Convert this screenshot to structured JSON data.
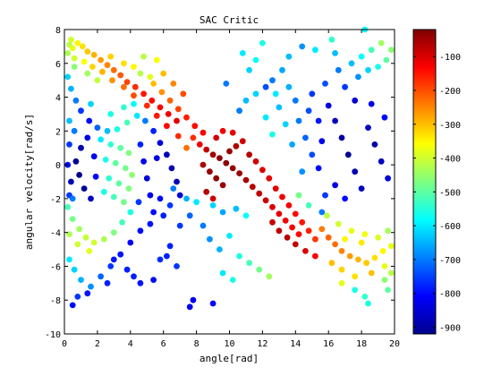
{
  "chart_data": {
    "type": "scatter",
    "title": "SAC Critic",
    "xlabel": "angle[rad]",
    "ylabel": "angular velocity[rad/s]",
    "xlim": [
      0,
      20
    ],
    "ylim": [
      -10,
      8
    ],
    "xticks": [
      "0",
      "2",
      "4",
      "6",
      "8",
      "10",
      "12",
      "14",
      "16",
      "18",
      "20"
    ],
    "yticks": [
      "-10",
      "-8",
      "-6",
      "-4",
      "-2",
      "0",
      "2",
      "4",
      "6",
      "8"
    ],
    "colorbar": {
      "range": [
        -920,
        -20
      ],
      "colormap": "jet",
      "ticks": [
        "-100",
        "-200",
        "-300",
        "-400",
        "-500",
        "-600",
        "-700",
        "-800",
        "-900"
      ]
    },
    "grid": false,
    "legend": "none",
    "points": [
      [
        0.3,
        7.1,
        -420
      ],
      [
        0.5,
        6.9,
        -380
      ],
      [
        0.8,
        7.2,
        -350
      ],
      [
        1.1,
        7.0,
        -330
      ],
      [
        1.4,
        6.7,
        -310
      ],
      [
        1.8,
        6.5,
        -290
      ],
      [
        2.2,
        6.2,
        -270
      ],
      [
        2.6,
        5.9,
        -250
      ],
      [
        3.0,
        5.6,
        -230
      ],
      [
        3.4,
        5.3,
        -210
      ],
      [
        3.8,
        4.9,
        -190
      ],
      [
        4.3,
        4.6,
        -170
      ],
      [
        4.8,
        4.2,
        -150
      ],
      [
        5.3,
        3.8,
        -140
      ],
      [
        5.8,
        3.4,
        -130
      ],
      [
        6.3,
        3.0,
        -120
      ],
      [
        6.8,
        2.6,
        -110
      ],
      [
        0.6,
        6.3,
        -400
      ],
      [
        1.2,
        6.1,
        -360
      ],
      [
        1.7,
        5.8,
        -320
      ],
      [
        2.3,
        5.5,
        -290
      ],
      [
        2.9,
        5.0,
        -260
      ],
      [
        3.6,
        4.6,
        -230
      ],
      [
        4.2,
        4.1,
        -200
      ],
      [
        5.0,
        3.5,
        -170
      ],
      [
        5.6,
        2.9,
        -150
      ],
      [
        6.2,
        2.3,
        -140
      ],
      [
        6.9,
        1.7,
        -170
      ],
      [
        7.4,
        1.0,
        -230
      ],
      [
        0.2,
        5.2,
        -620
      ],
      [
        0.4,
        4.5,
        -650
      ],
      [
        0.7,
        3.8,
        -700
      ],
      [
        1.0,
        3.2,
        -760
      ],
      [
        1.5,
        2.6,
        -800
      ],
      [
        2.0,
        2.2,
        -720
      ],
      [
        2.6,
        2.0,
        -640
      ],
      [
        3.2,
        2.1,
        -560
      ],
      [
        3.8,
        2.5,
        -520
      ],
      [
        4.4,
        2.9,
        -600
      ],
      [
        4.9,
        2.6,
        -700
      ],
      [
        5.4,
        2.0,
        -780
      ],
      [
        5.8,
        1.3,
        -840
      ],
      [
        6.2,
        0.6,
        -870
      ],
      [
        6.5,
        -0.2,
        -880
      ],
      [
        6.8,
        -1.0,
        -870
      ],
      [
        7.0,
        -1.8,
        -850
      ],
      [
        2.2,
        1.5,
        -600
      ],
      [
        2.8,
        1.2,
        -540
      ],
      [
        3.4,
        1.0,
        -500
      ],
      [
        3.9,
        0.7,
        -470
      ],
      [
        2.5,
        0.3,
        -560
      ],
      [
        3.1,
        0.1,
        -500
      ],
      [
        3.7,
        -0.2,
        -480
      ],
      [
        4.1,
        -0.6,
        -460
      ],
      [
        2.7,
        -0.8,
        -540
      ],
      [
        3.3,
        -1.1,
        -500
      ],
      [
        3.9,
        -1.4,
        -470
      ],
      [
        2.4,
        -1.6,
        -560
      ],
      [
        3.0,
        -1.9,
        -520
      ],
      [
        3.6,
        -2.2,
        -480
      ],
      [
        1.0,
        1.0,
        -880
      ],
      [
        0.7,
        0.2,
        -900
      ],
      [
        0.9,
        -0.6,
        -910
      ],
      [
        1.2,
        -1.4,
        -900
      ],
      [
        1.6,
        -2.0,
        -860
      ],
      [
        0.4,
        -1.0,
        -870
      ],
      [
        1.8,
        0.5,
        -820
      ],
      [
        1.9,
        -0.7,
        -800
      ],
      [
        1.4,
        1.6,
        -830
      ],
      [
        4.6,
        1.2,
        -780
      ],
      [
        4.8,
        0.2,
        -820
      ],
      [
        5.0,
        -0.8,
        -840
      ],
      [
        5.2,
        -1.8,
        -820
      ],
      [
        5.4,
        -2.8,
        -800
      ],
      [
        4.5,
        -2.2,
        -760
      ],
      [
        5.8,
        -2.0,
        -800
      ],
      [
        6.0,
        -3.0,
        -780
      ],
      [
        6.4,
        -2.4,
        -760
      ],
      [
        5.6,
        0.4,
        -830
      ],
      [
        0.2,
        -2.5,
        -520
      ],
      [
        0.5,
        -3.2,
        -480
      ],
      [
        0.9,
        -3.8,
        -440
      ],
      [
        1.3,
        -4.3,
        -410
      ],
      [
        1.8,
        -4.6,
        -400
      ],
      [
        2.4,
        -4.4,
        -430
      ],
      [
        3.0,
        -4.0,
        -470
      ],
      [
        3.5,
        -3.4,
        -520
      ],
      [
        4.0,
        -2.8,
        -560
      ],
      [
        0.3,
        -4.1,
        -430
      ],
      [
        0.8,
        -4.7,
        -400
      ],
      [
        1.5,
        -5.1,
        -380
      ],
      [
        0.3,
        -5.6,
        -600
      ],
      [
        0.6,
        -6.2,
        -620
      ],
      [
        1.0,
        -6.8,
        -650
      ],
      [
        1.6,
        -7.2,
        -680
      ],
      [
        2.2,
        -6.6,
        -720
      ],
      [
        2.8,
        -6.0,
        -760
      ],
      [
        3.4,
        -5.3,
        -790
      ],
      [
        4.0,
        -4.6,
        -810
      ],
      [
        4.6,
        -3.9,
        -800
      ],
      [
        5.2,
        -3.5,
        -790
      ],
      [
        0.8,
        -7.8,
        -760
      ],
      [
        1.4,
        -7.6,
        -790
      ],
      [
        0.5,
        -8.3,
        -800
      ],
      [
        2.6,
        -7.0,
        -780
      ],
      [
        7.8,
        1.6,
        -170
      ],
      [
        8.2,
        1.2,
        -120
      ],
      [
        8.6,
        0.9,
        -80
      ],
      [
        9.0,
        0.6,
        -50
      ],
      [
        9.4,
        0.4,
        -35
      ],
      [
        9.8,
        0.1,
        -30
      ],
      [
        10.2,
        -0.2,
        -35
      ],
      [
        10.6,
        -0.5,
        -45
      ],
      [
        11.0,
        -0.9,
        -60
      ],
      [
        11.4,
        -1.3,
        -70
      ],
      [
        11.8,
        -1.7,
        -80
      ],
      [
        12.2,
        -2.1,
        -90
      ],
      [
        12.6,
        -2.5,
        -100
      ],
      [
        13.0,
        -2.9,
        -110
      ],
      [
        13.4,
        -3.3,
        -120
      ],
      [
        13.8,
        -3.7,
        -130
      ],
      [
        14.2,
        -4.1,
        -140
      ],
      [
        8.4,
        0.0,
        -60
      ],
      [
        8.8,
        -0.4,
        -40
      ],
      [
        9.2,
        -0.8,
        -35
      ],
      [
        9.6,
        -1.2,
        -40
      ],
      [
        10.0,
        0.8,
        -40
      ],
      [
        10.4,
        1.1,
        -60
      ],
      [
        10.8,
        1.4,
        -90
      ],
      [
        9.2,
        1.6,
        -90
      ],
      [
        9.6,
        2.0,
        -120
      ],
      [
        10.2,
        1.9,
        -110
      ],
      [
        8.6,
        -1.6,
        -70
      ],
      [
        9.0,
        -2.0,
        -90
      ],
      [
        11.2,
        0.6,
        -70
      ],
      [
        11.6,
        0.2,
        -90
      ],
      [
        12.0,
        -0.3,
        -100
      ],
      [
        12.4,
        -0.8,
        -110
      ],
      [
        12.8,
        -1.4,
        -110
      ],
      [
        13.2,
        -1.9,
        -120
      ],
      [
        13.6,
        -2.4,
        -130
      ],
      [
        14.0,
        -2.9,
        -140
      ],
      [
        14.4,
        -3.4,
        -150
      ],
      [
        14.8,
        -3.9,
        -160
      ],
      [
        15.2,
        -4.4,
        -180
      ],
      [
        12.6,
        -3.4,
        -80
      ],
      [
        13.0,
        -3.9,
        -75
      ],
      [
        13.5,
        -4.3,
        -70
      ],
      [
        14.0,
        -4.7,
        -80
      ],
      [
        14.6,
        -5.1,
        -100
      ],
      [
        15.2,
        -5.4,
        -130
      ],
      [
        15.6,
        -3.8,
        -240
      ],
      [
        16.0,
        -4.3,
        -220
      ],
      [
        16.4,
        -4.7,
        -230
      ],
      [
        16.8,
        -5.1,
        -250
      ],
      [
        17.3,
        -5.4,
        -270
      ],
      [
        17.8,
        -5.6,
        -290
      ],
      [
        18.3,
        -5.8,
        -310
      ],
      [
        18.8,
        -5.5,
        -330
      ],
      [
        19.3,
        -5.1,
        -350
      ],
      [
        19.8,
        -4.8,
        -380
      ],
      [
        16.2,
        -5.8,
        -300
      ],
      [
        16.8,
        -6.2,
        -320
      ],
      [
        17.6,
        -6.6,
        -330
      ],
      [
        18.6,
        -6.4,
        -300
      ],
      [
        19.4,
        -6.0,
        -380
      ],
      [
        15.9,
        -3.0,
        -420
      ],
      [
        16.6,
        -3.5,
        -400
      ],
      [
        17.4,
        -3.9,
        -380
      ],
      [
        18.2,
        -4.1,
        -370
      ],
      [
        19.0,
        -4.3,
        -390
      ],
      [
        19.6,
        -3.9,
        -440
      ],
      [
        17.0,
        -4.4,
        -350
      ],
      [
        18.0,
        -4.6,
        -340
      ],
      [
        5.4,
        4.8,
        -300
      ],
      [
        5.9,
        4.3,
        -260
      ],
      [
        6.4,
        3.8,
        -220
      ],
      [
        6.9,
        3.3,
        -190
      ],
      [
        7.4,
        2.8,
        -160
      ],
      [
        7.9,
        2.3,
        -140
      ],
      [
        8.4,
        1.9,
        -130
      ],
      [
        5.2,
        5.2,
        -380
      ],
      [
        4.6,
        5.4,
        -420
      ],
      [
        16.0,
        3.5,
        -840
      ],
      [
        16.4,
        2.6,
        -870
      ],
      [
        16.8,
        1.6,
        -890
      ],
      [
        17.2,
        0.6,
        -900
      ],
      [
        17.6,
        -0.4,
        -880
      ],
      [
        18.0,
        -1.4,
        -860
      ],
      [
        18.4,
        2.2,
        -860
      ],
      [
        18.8,
        1.2,
        -880
      ],
      [
        19.2,
        0.2,
        -860
      ],
      [
        19.6,
        -0.8,
        -840
      ],
      [
        16.4,
        -1.2,
        -830
      ],
      [
        17.0,
        -2.0,
        -800
      ],
      [
        15.6,
        1.4,
        -820
      ],
      [
        15.4,
        -0.2,
        -800
      ],
      [
        18.6,
        3.6,
        -820
      ],
      [
        19.4,
        2.8,
        -800
      ],
      [
        17.6,
        3.8,
        -850
      ],
      [
        14.2,
        2.6,
        -700
      ],
      [
        14.6,
        1.6,
        -720
      ],
      [
        15.0,
        0.6,
        -740
      ],
      [
        14.4,
        -0.4,
        -680
      ],
      [
        13.8,
        1.2,
        -660
      ],
      [
        13.4,
        2.4,
        -620
      ],
      [
        12.6,
        1.8,
        -560
      ],
      [
        12.2,
        2.8,
        -600
      ],
      [
        13.0,
        3.4,
        -640
      ],
      [
        14.0,
        3.8,
        -700
      ],
      [
        15.0,
        4.2,
        -760
      ],
      [
        15.8,
        4.8,
        -740
      ],
      [
        17.0,
        4.6,
        -760
      ],
      [
        17.8,
        5.2,
        -680
      ],
      [
        18.4,
        5.6,
        -620
      ],
      [
        19.0,
        5.8,
        -560
      ],
      [
        19.5,
        6.2,
        -500
      ],
      [
        19.8,
        6.8,
        -460
      ],
      [
        19.2,
        7.2,
        -440
      ],
      [
        18.6,
        6.8,
        -520
      ],
      [
        18.0,
        6.4,
        -580
      ],
      [
        17.4,
        6.0,
        -640
      ],
      [
        16.6,
        5.6,
        -700
      ],
      [
        18.2,
        8.0,
        -580
      ],
      [
        16.4,
        6.6,
        -640
      ],
      [
        12.2,
        4.6,
        -740
      ],
      [
        12.6,
        5.0,
        -700
      ],
      [
        13.2,
        5.6,
        -660
      ],
      [
        11.6,
        4.2,
        -620
      ],
      [
        11.0,
        3.8,
        -640
      ],
      [
        10.6,
        3.2,
        -700
      ],
      [
        9.8,
        4.8,
        -700
      ],
      [
        11.2,
        5.6,
        -620
      ],
      [
        14.4,
        7.0,
        -680
      ],
      [
        15.2,
        6.8,
        -600
      ],
      [
        16.2,
        7.4,
        -540
      ],
      [
        13.6,
        6.4,
        -640
      ],
      [
        8.4,
        -3.6,
        -700
      ],
      [
        8.8,
        -4.4,
        -680
      ],
      [
        9.4,
        -5.0,
        -650
      ],
      [
        10.0,
        -4.2,
        -600
      ],
      [
        10.6,
        -5.4,
        -560
      ],
      [
        11.2,
        -5.8,
        -520
      ],
      [
        11.8,
        -6.2,
        -480
      ],
      [
        12.4,
        -6.6,
        -440
      ],
      [
        7.6,
        -3.0,
        -720
      ],
      [
        7.0,
        -3.6,
        -760
      ],
      [
        6.4,
        -4.8,
        -780
      ],
      [
        5.8,
        -5.6,
        -770
      ],
      [
        9.6,
        -6.4,
        -600
      ],
      [
        10.2,
        -6.8,
        -560
      ],
      [
        9.0,
        -2.4,
        -620
      ],
      [
        9.6,
        -2.8,
        -660
      ],
      [
        10.4,
        -2.6,
        -640
      ],
      [
        8.0,
        -2.2,
        -600
      ],
      [
        7.4,
        -2.0,
        -650
      ],
      [
        6.6,
        -1.4,
        -700
      ],
      [
        11.0,
        -3.0,
        -580
      ],
      [
        7.6,
        -8.4,
        -820
      ],
      [
        7.8,
        -8.0,
        -830
      ],
      [
        9.0,
        -8.2,
        -800
      ],
      [
        4.6,
        -7.0,
        -790
      ],
      [
        5.4,
        -6.8,
        -800
      ],
      [
        3.8,
        -6.2,
        -780
      ],
      [
        4.2,
        -6.6,
        -780
      ],
      [
        3.0,
        -5.6,
        -790
      ],
      [
        6.2,
        -5.4,
        -780
      ],
      [
        6.8,
        -6.0,
        -760
      ],
      [
        4.2,
        5.8,
        -350
      ],
      [
        3.6,
        6.0,
        -330
      ],
      [
        2.8,
        6.4,
        -320
      ],
      [
        4.8,
        6.4,
        -420
      ],
      [
        5.6,
        6.2,
        -360
      ],
      [
        6.0,
        5.4,
        -300
      ],
      [
        6.6,
        4.8,
        -250
      ],
      [
        7.2,
        4.2,
        -200
      ],
      [
        2.0,
        5.0,
        -410
      ],
      [
        1.4,
        5.4,
        -440
      ],
      [
        0.6,
        5.8,
        -460
      ],
      [
        0.2,
        6.6,
        -430
      ],
      [
        0.4,
        7.4,
        -400
      ],
      [
        0.3,
        2.6,
        -640
      ],
      [
        0.6,
        2.0,
        -700
      ],
      [
        0.3,
        1.2,
        -760
      ],
      [
        0.2,
        0.0,
        -800
      ],
      [
        0.3,
        -1.8,
        -760
      ],
      [
        0.5,
        -2.0,
        -700
      ],
      [
        1.6,
        3.6,
        -620
      ],
      [
        2.8,
        3.0,
        -560
      ],
      [
        3.6,
        3.4,
        -540
      ],
      [
        4.2,
        3.6,
        -580
      ],
      [
        11.6,
        6.2,
        -580
      ],
      [
        10.8,
        6.6,
        -600
      ],
      [
        12.0,
        7.2,
        -560
      ],
      [
        17.6,
        -7.4,
        -560
      ],
      [
        18.2,
        -7.8,
        -540
      ],
      [
        18.4,
        -8.2,
        -560
      ],
      [
        19.6,
        -7.4,
        -500
      ],
      [
        19.4,
        -6.8,
        -460
      ],
      [
        19.8,
        -6.4,
        -420
      ],
      [
        16.8,
        -7.0,
        -380
      ],
      [
        12.8,
        4.2,
        -600
      ],
      [
        13.6,
        4.6,
        -650
      ],
      [
        14.8,
        3.2,
        -740
      ],
      [
        15.4,
        2.6,
        -790
      ],
      [
        15.8,
        -1.8,
        -760
      ],
      [
        15.6,
        -2.8,
        -700
      ],
      [
        14.8,
        -2.4,
        -520
      ],
      [
        14.2,
        -1.8,
        -480
      ]
    ]
  }
}
